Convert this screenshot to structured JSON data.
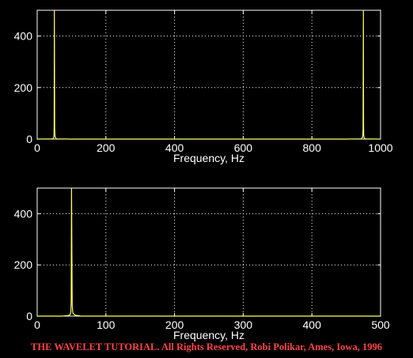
{
  "chart_data": [
    {
      "type": "line",
      "title": "",
      "xlabel": "Frequency, Hz",
      "ylabel": "",
      "xlim": [
        0,
        1000
      ],
      "ylim": [
        0,
        500
      ],
      "xticks": [
        0,
        200,
        400,
        600,
        800,
        1000
      ],
      "yticks": [
        0,
        200,
        400
      ],
      "grid": true,
      "series": [
        {
          "color": "#ffff66",
          "x": [
            0,
            44,
            46,
            48,
            49,
            49.5,
            50,
            50.5,
            51,
            52,
            54,
            56,
            100,
            900,
            944,
            946,
            948,
            949,
            949.5,
            950,
            950.5,
            951,
            952,
            954,
            956,
            1000
          ],
          "y": [
            0,
            1,
            2,
            5,
            15,
            60,
            500,
            260,
            40,
            10,
            4,
            1,
            0,
            0,
            1,
            4,
            10,
            40,
            260,
            500,
            60,
            15,
            5,
            2,
            1,
            0
          ]
        }
      ]
    },
    {
      "type": "line",
      "title": "",
      "xlabel": "Frequency, Hz",
      "ylabel": "",
      "xlim": [
        0,
        500
      ],
      "ylim": [
        0,
        500
      ],
      "xticks": [
        0,
        100,
        200,
        300,
        400,
        500
      ],
      "yticks": [
        0,
        200,
        400
      ],
      "grid": true,
      "series": [
        {
          "color": "#ffff66",
          "x": [
            0,
            36,
            40,
            44,
            46,
            48,
            49,
            49.5,
            50,
            50.5,
            51,
            52,
            54,
            56,
            60,
            64,
            500
          ],
          "y": [
            0,
            0,
            1,
            2,
            3,
            6,
            15,
            60,
            500,
            260,
            40,
            12,
            6,
            3,
            2,
            0,
            0
          ]
        }
      ]
    }
  ],
  "footer": {
    "credit": "THE WAVELET TUTORIAL. All Rights Reserved, Robi Polikar, Ames, Iowa, 1996"
  }
}
